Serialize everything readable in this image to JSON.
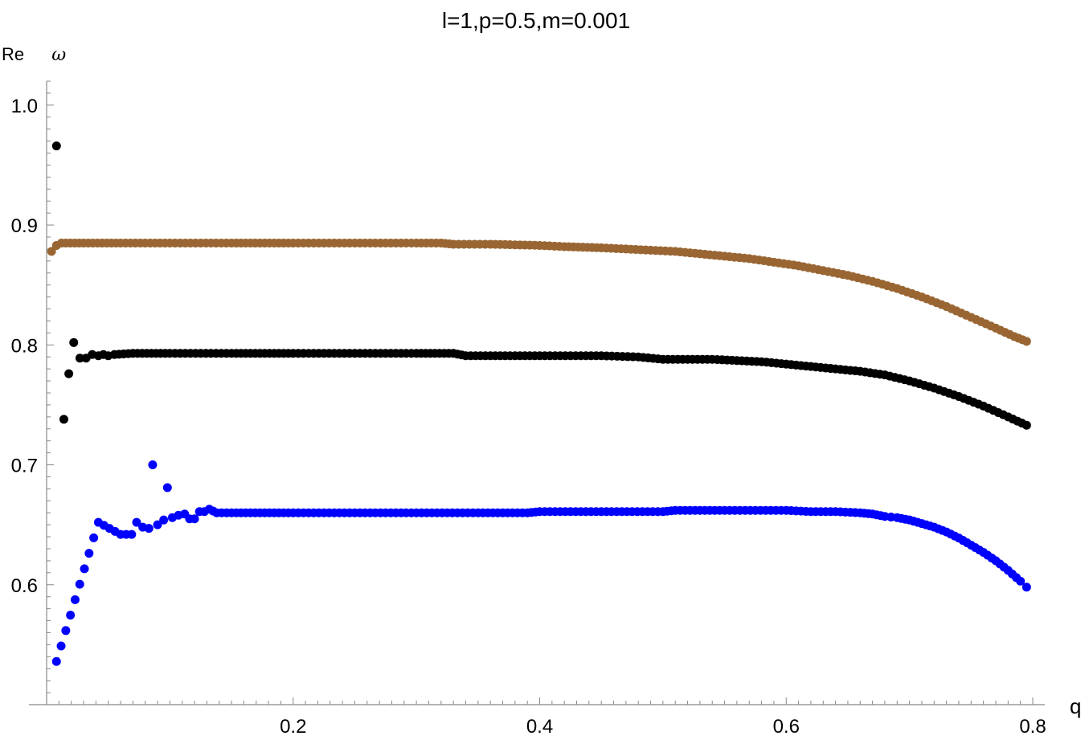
{
  "chart_data": {
    "type": "scatter",
    "title": "l=1,p=0.5,m=0.001",
    "xlabel": "q",
    "ylabel_prefix": "Re",
    "ylabel_symbol": "ω",
    "xlim": [
      0.0,
      0.8
    ],
    "ylim": [
      0.5,
      1.02
    ],
    "x_ticks": [
      0.2,
      0.4,
      0.6,
      0.8
    ],
    "x_tick_labels": [
      "0.2",
      "0.4",
      "0.6",
      "0.8"
    ],
    "y_ticks": [
      0.6,
      0.7,
      0.8,
      0.9,
      1.0
    ],
    "y_tick_labels": [
      "0.6",
      "0.7",
      "0.8",
      "0.9",
      "1.0"
    ],
    "grid": false,
    "legend": "none",
    "series": [
      {
        "color": "#996633",
        "points": [
          [
            0.004,
            0.878
          ],
          [
            0.008,
            0.883
          ],
          [
            0.012,
            0.885
          ],
          [
            0.03,
            0.885
          ],
          [
            0.06,
            0.885
          ],
          [
            0.1,
            0.885
          ],
          [
            0.15,
            0.885
          ],
          [
            0.2,
            0.885
          ],
          [
            0.25,
            0.885
          ],
          [
            0.3,
            0.885
          ],
          [
            0.32,
            0.885
          ],
          [
            0.33,
            0.884
          ],
          [
            0.36,
            0.884
          ],
          [
            0.4,
            0.883
          ],
          [
            0.42,
            0.882
          ],
          [
            0.45,
            0.881
          ],
          [
            0.47,
            0.88
          ],
          [
            0.49,
            0.879
          ],
          [
            0.51,
            0.878
          ],
          [
            0.53,
            0.876
          ],
          [
            0.55,
            0.874
          ],
          [
            0.57,
            0.872
          ],
          [
            0.59,
            0.869
          ],
          [
            0.61,
            0.866
          ],
          [
            0.63,
            0.862
          ],
          [
            0.65,
            0.858
          ],
          [
            0.67,
            0.853
          ],
          [
            0.69,
            0.847
          ],
          [
            0.71,
            0.84
          ],
          [
            0.73,
            0.832
          ],
          [
            0.75,
            0.823
          ],
          [
            0.77,
            0.814
          ],
          [
            0.785,
            0.807
          ],
          [
            0.795,
            0.803
          ]
        ]
      },
      {
        "color": "#000000",
        "points": [
          [
            0.008,
            0.966
          ],
          [
            0.014,
            0.738
          ],
          [
            0.018,
            0.776
          ],
          [
            0.022,
            0.802
          ],
          [
            0.027,
            0.789
          ],
          [
            0.032,
            0.789
          ],
          [
            0.037,
            0.792
          ],
          [
            0.042,
            0.791
          ],
          [
            0.046,
            0.792
          ],
          [
            0.05,
            0.791
          ],
          [
            0.055,
            0.792
          ],
          [
            0.07,
            0.793
          ],
          [
            0.1,
            0.793
          ],
          [
            0.15,
            0.793
          ],
          [
            0.2,
            0.793
          ],
          [
            0.25,
            0.793
          ],
          [
            0.3,
            0.793
          ],
          [
            0.33,
            0.793
          ],
          [
            0.34,
            0.791
          ],
          [
            0.4,
            0.791
          ],
          [
            0.45,
            0.791
          ],
          [
            0.48,
            0.79
          ],
          [
            0.5,
            0.788
          ],
          [
            0.52,
            0.788
          ],
          [
            0.54,
            0.788
          ],
          [
            0.56,
            0.787
          ],
          [
            0.58,
            0.786
          ],
          [
            0.6,
            0.784
          ],
          [
            0.62,
            0.782
          ],
          [
            0.64,
            0.78
          ],
          [
            0.66,
            0.778
          ],
          [
            0.68,
            0.775
          ],
          [
            0.7,
            0.77
          ],
          [
            0.72,
            0.764
          ],
          [
            0.74,
            0.757
          ],
          [
            0.76,
            0.749
          ],
          [
            0.78,
            0.74
          ],
          [
            0.795,
            0.733
          ]
        ]
      },
      {
        "color": "#0000ff",
        "points": [
          [
            0.008,
            0.536
          ],
          [
            0.042,
            0.652
          ],
          [
            0.06,
            0.642
          ],
          [
            0.069,
            0.642
          ],
          [
            0.073,
            0.652
          ],
          [
            0.078,
            0.648
          ],
          [
            0.083,
            0.647
          ],
          [
            0.086,
            0.7
          ],
          [
            0.09,
            0.65
          ],
          [
            0.095,
            0.654
          ],
          [
            0.098,
            0.681
          ],
          [
            0.102,
            0.656
          ],
          [
            0.107,
            0.658
          ],
          [
            0.112,
            0.659
          ],
          [
            0.116,
            0.655
          ],
          [
            0.12,
            0.655
          ],
          [
            0.124,
            0.661
          ],
          [
            0.128,
            0.661
          ],
          [
            0.132,
            0.663
          ],
          [
            0.138,
            0.66
          ],
          [
            0.15,
            0.66
          ],
          [
            0.2,
            0.66
          ],
          [
            0.25,
            0.66
          ],
          [
            0.3,
            0.66
          ],
          [
            0.35,
            0.66
          ],
          [
            0.39,
            0.66
          ],
          [
            0.4,
            0.661
          ],
          [
            0.45,
            0.661
          ],
          [
            0.5,
            0.661
          ],
          [
            0.51,
            0.662
          ],
          [
            0.55,
            0.662
          ],
          [
            0.6,
            0.662
          ],
          [
            0.62,
            0.661
          ],
          [
            0.64,
            0.661
          ],
          [
            0.66,
            0.66
          ],
          [
            0.67,
            0.659
          ],
          [
            0.68,
            0.657
          ],
          [
            0.69,
            0.656
          ],
          [
            0.7,
            0.654
          ],
          [
            0.71,
            0.651
          ],
          [
            0.72,
            0.648
          ],
          [
            0.73,
            0.644
          ],
          [
            0.74,
            0.639
          ],
          [
            0.75,
            0.633
          ],
          [
            0.76,
            0.627
          ],
          [
            0.77,
            0.62
          ],
          [
            0.78,
            0.612
          ],
          [
            0.79,
            0.603
          ],
          [
            0.795,
            0.598
          ]
        ]
      }
    ]
  }
}
